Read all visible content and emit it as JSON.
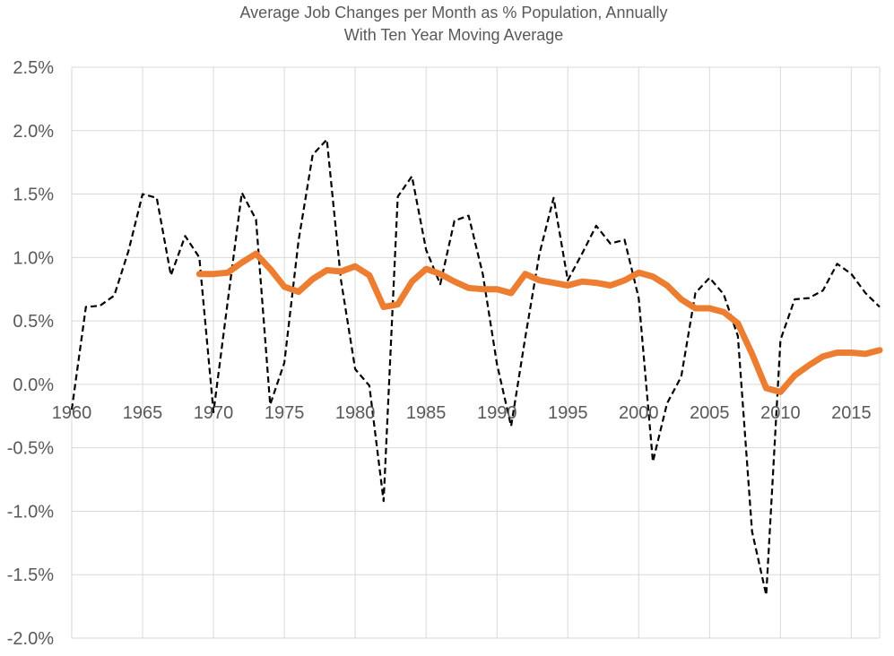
{
  "chart_data": {
    "type": "line",
    "title": "Average Job Changes per Month as % Population, Annually",
    "subtitle": "With Ten Year Moving Average",
    "xlabel": "",
    "ylabel": "",
    "xlim": [
      1960,
      2017
    ],
    "ylim": [
      -2.0,
      2.5
    ],
    "x_ticks": [
      1960,
      1965,
      1970,
      1975,
      1980,
      1985,
      1990,
      1995,
      2000,
      2005,
      2010,
      2015
    ],
    "x_tick_labels": [
      "1960",
      "1965",
      "1970",
      "1975",
      "1980",
      "1985",
      "1990",
      "1995",
      "2000",
      "2005",
      "2010",
      "2015"
    ],
    "y_ticks": [
      2.5,
      2.0,
      1.5,
      1.0,
      0.5,
      0.0,
      -0.5,
      -1.0,
      -1.5,
      -2.0
    ],
    "y_tick_labels": [
      "2.5%",
      "2.0%",
      "1.5%",
      "1.0%",
      "0.5%",
      "0.0%",
      "-0.5%",
      "-1.0%",
      "-1.5%",
      "-2.0%"
    ],
    "grid": true,
    "legend": "none",
    "series": [
      {
        "style": "dashed",
        "color": "#000000",
        "x": [
          1960,
          1961,
          1962,
          1963,
          1964,
          1965,
          1966,
          1967,
          1968,
          1969,
          1970,
          1971,
          1972,
          1973,
          1974,
          1975,
          1976,
          1977,
          1978,
          1979,
          1980,
          1981,
          1982,
          1983,
          1984,
          1985,
          1986,
          1987,
          1988,
          1989,
          1990,
          1991,
          1992,
          1993,
          1994,
          1995,
          1996,
          1997,
          1998,
          1999,
          2000,
          2001,
          2002,
          2003,
          2004,
          2005,
          2006,
          2007,
          2008,
          2009,
          2010,
          2011,
          2012,
          2013,
          2014,
          2015,
          2016,
          2017
        ],
        "values": [
          -0.2,
          0.61,
          0.62,
          0.7,
          1.05,
          1.5,
          1.47,
          0.86,
          1.17,
          1.0,
          -0.22,
          0.65,
          1.51,
          1.3,
          -0.16,
          0.17,
          1.13,
          1.81,
          1.93,
          0.82,
          0.12,
          -0.01,
          -0.92,
          1.48,
          1.64,
          1.06,
          0.79,
          1.29,
          1.33,
          0.87,
          0.16,
          -0.33,
          0.37,
          1.03,
          1.47,
          0.82,
          1.03,
          1.25,
          1.11,
          1.14,
          0.68,
          -0.61,
          -0.15,
          0.06,
          0.72,
          0.84,
          0.71,
          0.38,
          -1.16,
          -1.66,
          0.35,
          0.67,
          0.68,
          0.74,
          0.95,
          0.87,
          0.72,
          0.61
        ]
      },
      {
        "style": "solid",
        "color": "#ED7D31",
        "x": [
          1969,
          1970,
          1971,
          1972,
          1973,
          1974,
          1975,
          1976,
          1977,
          1978,
          1979,
          1980,
          1981,
          1982,
          1983,
          1984,
          1985,
          1986,
          1987,
          1988,
          1989,
          1990,
          1991,
          1992,
          1993,
          1994,
          1995,
          1996,
          1997,
          1998,
          1999,
          2000,
          2001,
          2002,
          2003,
          2004,
          2005,
          2006,
          2007,
          2008,
          2009,
          2010,
          2011,
          2012,
          2013,
          2014,
          2015,
          2016,
          2017
        ],
        "values": [
          0.87,
          0.87,
          0.88,
          0.96,
          1.03,
          0.91,
          0.77,
          0.73,
          0.83,
          0.9,
          0.89,
          0.93,
          0.86,
          0.61,
          0.63,
          0.81,
          0.91,
          0.87,
          0.81,
          0.76,
          0.75,
          0.75,
          0.72,
          0.87,
          0.82,
          0.8,
          0.78,
          0.81,
          0.8,
          0.78,
          0.82,
          0.88,
          0.85,
          0.78,
          0.67,
          0.6,
          0.6,
          0.57,
          0.48,
          0.24,
          -0.03,
          -0.06,
          0.07,
          0.15,
          0.22,
          0.25,
          0.25,
          0.24,
          0.27
        ]
      }
    ]
  }
}
